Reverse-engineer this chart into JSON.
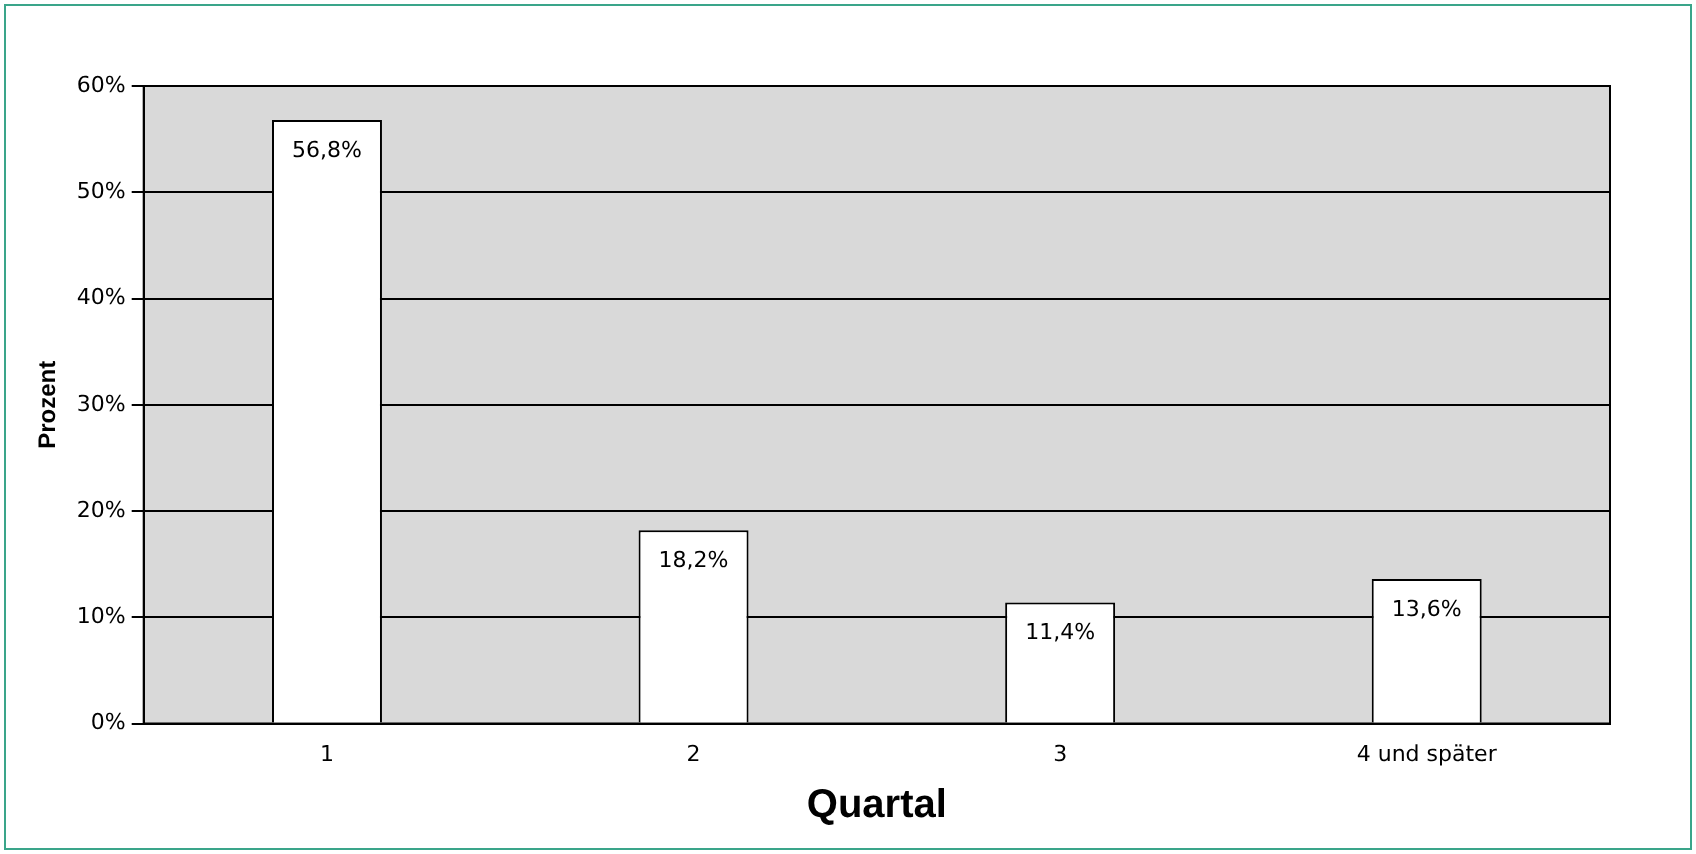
{
  "chart_data": {
    "type": "bar",
    "xlabel": "Quartal",
    "ylabel": "Prozent",
    "categories": [
      "1",
      "2",
      "3",
      "4 und später"
    ],
    "values": [
      56.8,
      18.2,
      11.4,
      13.6
    ],
    "value_labels": [
      "56,8%",
      "18,2%",
      "11,4%",
      "13,6%"
    ],
    "color": "#ffffff",
    "ylim": [
      0,
      60
    ],
    "yticks": [
      {
        "value": 0,
        "label": "0%"
      },
      {
        "value": 10,
        "label": "10%"
      },
      {
        "value": 20,
        "label": "20%"
      },
      {
        "value": 30,
        "label": "30%"
      },
      {
        "value": 40,
        "label": "40%"
      },
      {
        "value": 50,
        "label": "50%"
      },
      {
        "value": 60,
        "label": "60%"
      }
    ],
    "grid": "y",
    "legend": false
  }
}
